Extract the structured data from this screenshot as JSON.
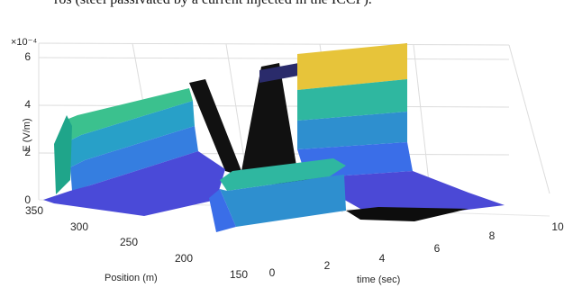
{
  "caption": "ros (steel passivated by a current injected in the ICCP).",
  "chart_data": {
    "type": "surface",
    "title": "",
    "xlabel": "time (sec)",
    "ylabel": "Position (m)",
    "zlabel": "E (V/m)",
    "z_exponent": "×10⁻⁴",
    "xlim": [
      0,
      10
    ],
    "ylim": [
      150,
      350
    ],
    "zlim": [
      0,
      6
    ],
    "x_ticks": [
      "0",
      "2",
      "4",
      "6",
      "8",
      "10"
    ],
    "y_ticks": [
      "350",
      "300",
      "250",
      "200",
      "150"
    ],
    "z_ticks": [
      "0",
      "2",
      "4",
      "6"
    ],
    "grid": true,
    "colormap": "parula",
    "features": [
      {
        "name": "plateau",
        "time_range": [
          0.2,
          4.2
        ],
        "position_range": [
          280,
          340
        ],
        "peak": 4.2
      },
      {
        "name": "tall plateau",
        "time_range": [
          3.2,
          9.0
        ],
        "position_range": [
          240,
          350
        ],
        "peak": 5.5
      },
      {
        "name": "front plateau",
        "time_range": [
          4.5,
          7.5
        ],
        "position_range": [
          150,
          200
        ],
        "peak": 2.6
      }
    ]
  }
}
